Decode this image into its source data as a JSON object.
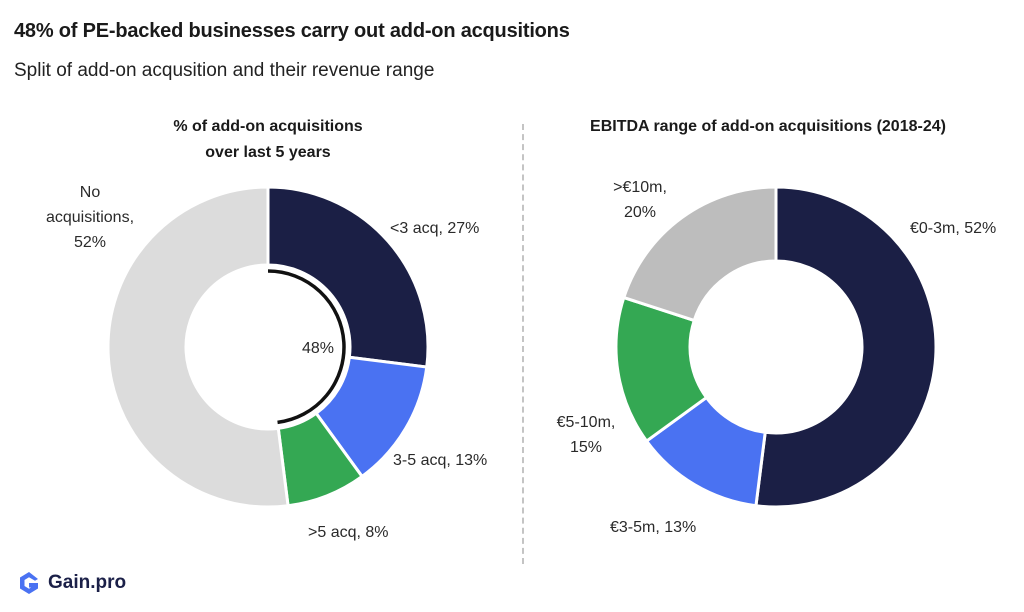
{
  "header": {
    "title": "48% of PE-backed businesses carry out add-on acqusitions",
    "subtitle": "Split of add-on acqusition and their revenue range"
  },
  "chart_data": [
    {
      "type": "pie",
      "title_lines": [
        "% of add-on acquisitions",
        "over last 5 years"
      ],
      "center_label": "48%",
      "slices": [
        {
          "label_lines": [
            "<3 acq, 27%"
          ],
          "value": 27,
          "color": "#1b1f45"
        },
        {
          "label_lines": [
            "3-5 acq, 13%"
          ],
          "value": 13,
          "color": "#4a72f2"
        },
        {
          "label_lines": [
            ">5 acq, 8%"
          ],
          "value": 8,
          "color": "#34a853"
        },
        {
          "label_lines": [
            "No",
            "acquisitions,",
            "52%"
          ],
          "value": 52,
          "color": "#dcdcdc"
        }
      ]
    },
    {
      "type": "pie",
      "title_lines": [
        "EBITDA range of add-on acquisitions (2018-24)"
      ],
      "slices": [
        {
          "label_lines": [
            "€0-3m, 52%"
          ],
          "value": 52,
          "color": "#1b1f45"
        },
        {
          "label_lines": [
            "€3-5m, 13%"
          ],
          "value": 13,
          "color": "#4a72f2"
        },
        {
          "label_lines": [
            "€5-10m,",
            "15%"
          ],
          "value": 15,
          "color": "#34a853"
        },
        {
          "label_lines": [
            ">€10m,",
            "20%"
          ],
          "value": 20,
          "color": "#bdbdbd"
        }
      ]
    }
  ],
  "footer": {
    "logo_text": "Gain.pro"
  }
}
